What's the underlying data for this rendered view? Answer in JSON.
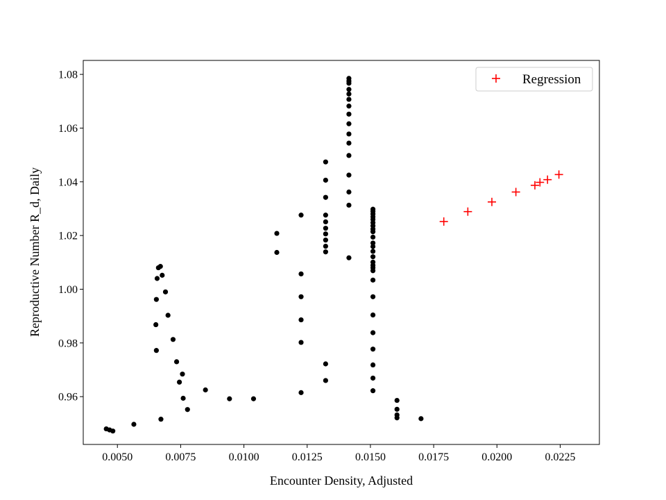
{
  "chart_data": {
    "type": "scatter",
    "title": "",
    "xlabel": "Encounter Density, Adjusted",
    "ylabel": "Reproductive Number R_d, Daily",
    "xlim": [
      0.00365,
      0.02405
    ],
    "ylim": [
      0.9422,
      1.0852
    ],
    "xticks": [
      {
        "value": 0.005,
        "label": "0.0050"
      },
      {
        "value": 0.0075,
        "label": "0.0075"
      },
      {
        "value": 0.01,
        "label": "0.0100"
      },
      {
        "value": 0.0125,
        "label": "0.0125"
      },
      {
        "value": 0.015,
        "label": "0.0150"
      },
      {
        "value": 0.0175,
        "label": "0.0175"
      },
      {
        "value": 0.02,
        "label": "0.0200"
      },
      {
        "value": 0.0225,
        "label": "0.0225"
      }
    ],
    "yticks": [
      {
        "value": 0.96,
        "label": "0.96"
      },
      {
        "value": 0.98,
        "label": "0.98"
      },
      {
        "value": 1.0,
        "label": "1.00"
      },
      {
        "value": 1.02,
        "label": "1.02"
      },
      {
        "value": 1.04,
        "label": "1.04"
      },
      {
        "value": 1.06,
        "label": "1.06"
      },
      {
        "value": 1.08,
        "label": "1.08"
      }
    ],
    "grid": false,
    "legend_position": "top-right",
    "series": [
      {
        "marker": "dot",
        "color": "#000000",
        "points": [
          [
            0.00456,
            0.948
          ],
          [
            0.00469,
            0.9476
          ],
          [
            0.00482,
            0.9472
          ],
          [
            0.00565,
            0.9497
          ],
          [
            0.0067,
            1.0085
          ],
          [
            0.00662,
            1.008
          ],
          [
            0.00677,
            1.0052
          ],
          [
            0.00657,
            1.004
          ],
          [
            0.0069,
            0.999
          ],
          [
            0.00654,
            0.9962
          ],
          [
            0.007,
            0.9903
          ],
          [
            0.00652,
            0.9868
          ],
          [
            0.0072,
            0.9813
          ],
          [
            0.00654,
            0.9772
          ],
          [
            0.00734,
            0.973
          ],
          [
            0.00757,
            0.9684
          ],
          [
            0.00745,
            0.9654
          ],
          [
            0.0076,
            0.9594
          ],
          [
            0.00777,
            0.9552
          ],
          [
            0.00672,
            0.9516
          ],
          [
            0.00848,
            0.9625
          ],
          [
            0.00943,
            0.9592
          ],
          [
            0.01038,
            0.9592
          ],
          [
            0.0113,
            1.0208
          ],
          [
            0.0113,
            1.0137
          ],
          [
            0.01226,
            1.0276
          ],
          [
            0.01226,
            1.0057
          ],
          [
            0.01226,
            0.9972
          ],
          [
            0.01226,
            0.9886
          ],
          [
            0.01226,
            0.9802
          ],
          [
            0.01226,
            0.9615
          ],
          [
            0.01323,
            1.0474
          ],
          [
            0.01323,
            1.0406
          ],
          [
            0.01323,
            1.0342
          ],
          [
            0.01323,
            1.0276
          ],
          [
            0.01323,
            1.0251
          ],
          [
            0.01323,
            1.0227
          ],
          [
            0.01323,
            1.0206
          ],
          [
            0.01323,
            1.0183
          ],
          [
            0.01323,
            1.016
          ],
          [
            0.01323,
            1.0139
          ],
          [
            0.01323,
            0.9722
          ],
          [
            0.01323,
            0.966
          ],
          [
            0.01415,
            1.0785
          ],
          [
            0.01415,
            1.0775
          ],
          [
            0.01415,
            1.0767
          ],
          [
            0.01415,
            1.0744
          ],
          [
            0.01415,
            1.0727
          ],
          [
            0.01415,
            1.0707
          ],
          [
            0.01415,
            1.0682
          ],
          [
            0.01415,
            1.0652
          ],
          [
            0.01415,
            1.0616
          ],
          [
            0.01415,
            1.0578
          ],
          [
            0.01415,
            1.0544
          ],
          [
            0.01415,
            1.0498
          ],
          [
            0.01415,
            1.0425
          ],
          [
            0.01415,
            1.0362
          ],
          [
            0.01415,
            1.0313
          ],
          [
            0.01415,
            1.0117
          ],
          [
            0.0151,
            1.0298
          ],
          [
            0.0151,
            1.029
          ],
          [
            0.0151,
            1.028
          ],
          [
            0.0151,
            1.027
          ],
          [
            0.0151,
            1.026
          ],
          [
            0.0151,
            1.0248
          ],
          [
            0.0151,
            1.0236
          ],
          [
            0.0151,
            1.0224
          ],
          [
            0.0151,
            1.0214
          ],
          [
            0.0151,
            1.0194
          ],
          [
            0.0151,
            1.0172
          ],
          [
            0.0151,
            1.0159
          ],
          [
            0.0151,
            1.0141
          ],
          [
            0.0151,
            1.0121
          ],
          [
            0.0151,
            1.0101
          ],
          [
            0.0151,
            1.0089
          ],
          [
            0.0151,
            1.008
          ],
          [
            0.0151,
            1.0069
          ],
          [
            0.0151,
            1.0034
          ],
          [
            0.0151,
            0.9972
          ],
          [
            0.0151,
            0.9904
          ],
          [
            0.0151,
            0.9838
          ],
          [
            0.0151,
            0.9777
          ],
          [
            0.0151,
            0.9718
          ],
          [
            0.0151,
            0.9669
          ],
          [
            0.0151,
            0.9622
          ],
          [
            0.01605,
            0.9586
          ],
          [
            0.01605,
            0.9553
          ],
          [
            0.01605,
            0.9532
          ],
          [
            0.01605,
            0.9521
          ],
          [
            0.017,
            0.9518
          ]
        ]
      },
      {
        "name": "Regression",
        "marker": "plus",
        "color": "#ff0000",
        "points": [
          [
            0.0179,
            1.0252
          ],
          [
            0.01885,
            1.0289
          ],
          [
            0.0198,
            1.0325
          ],
          [
            0.02075,
            1.0362
          ],
          [
            0.0215,
            1.0387
          ],
          [
            0.0217,
            1.0398
          ],
          [
            0.022,
            1.0408
          ],
          [
            0.02245,
            1.0427
          ]
        ]
      }
    ]
  }
}
